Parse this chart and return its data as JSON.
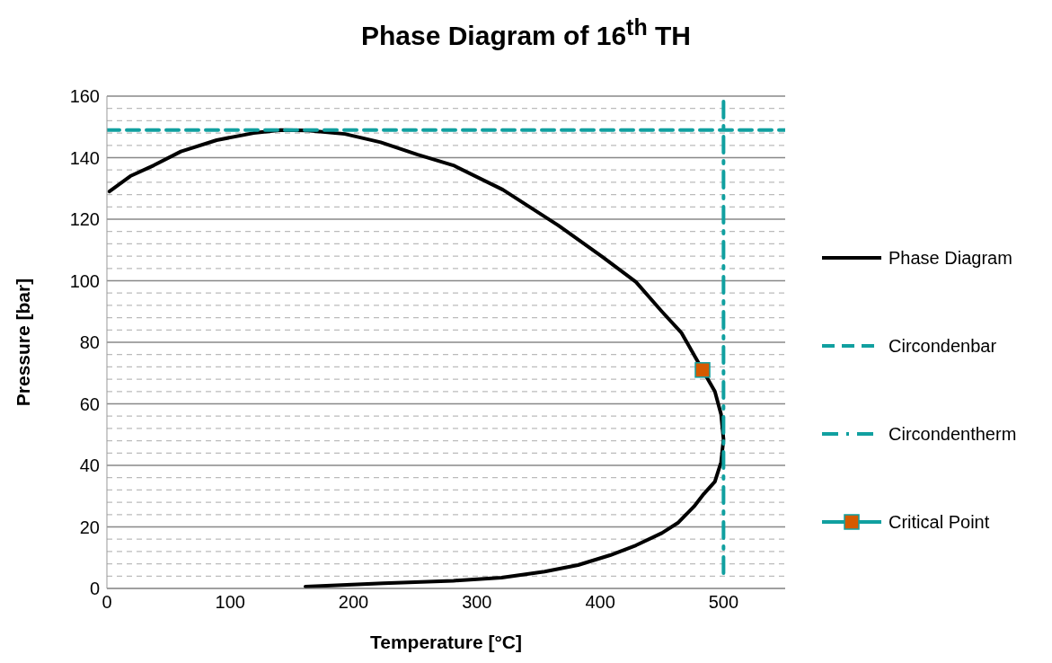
{
  "chart_data": {
    "type": "line",
    "title": "Phase Diagram of 16$^{th}$ TH",
    "xlabel": "Temperature [°C]",
    "ylabel": "Pressure [bar]",
    "xlim": [
      0,
      550
    ],
    "xticks": [
      0,
      100,
      200,
      300,
      400,
      500
    ],
    "ylim": [
      0,
      160
    ],
    "yticks": [
      0,
      {
        "value": 4,
        "label": null
      },
      {
        "value": 8,
        "label": null
      },
      {
        "value": 12,
        "label": null
      },
      {
        "value": 16,
        "label": null
      },
      20,
      {
        "value": 24,
        "label": null
      },
      {
        "value": 28,
        "label": null
      },
      {
        "value": 32,
        "label": null
      },
      {
        "value": 36,
        "label": null
      },
      40,
      {
        "value": 44,
        "label": null
      },
      {
        "value": 48,
        "label": null
      },
      {
        "value": 52,
        "label": null
      },
      {
        "value": 56,
        "label": null
      },
      60,
      {
        "value": 64,
        "label": null
      },
      {
        "value": 68,
        "label": null
      },
      {
        "value": 72,
        "label": null
      },
      {
        "value": 76,
        "label": null
      },
      80,
      {
        "value": 84,
        "label": null
      },
      {
        "value": 88,
        "label": null
      },
      {
        "value": 92,
        "label": null
      },
      {
        "value": 96,
        "label": null
      },
      100,
      {
        "value": 104,
        "label": null
      },
      {
        "value": 108,
        "label": null
      },
      {
        "value": 112,
        "label": null
      },
      {
        "value": 116,
        "label": null
      },
      120,
      {
        "value": 124,
        "label": null
      },
      {
        "value": 128,
        "label": null
      },
      {
        "value": 132,
        "label": null
      },
      {
        "value": 136,
        "label": null
      },
      140,
      {
        "value": 144,
        "label": null
      },
      {
        "value": 148,
        "label": null
      },
      {
        "value": 152,
        "label": null
      },
      {
        "value": 156,
        "label": null
      },
      160
    ],
    "grid": "y",
    "legend": "right",
    "series": [
      {
        "name": "Phase Diagram",
        "color": "#000000",
        "line_style": "solid",
        "marker": "none",
        "x": [
          161,
          224,
          281,
          320,
          355,
          382,
          408,
          429,
          450,
          463,
          476,
          484,
          493,
          498,
          500,
          498,
          493,
          481,
          466,
          450,
          429,
          402,
          366,
          321,
          281,
          252,
          222,
          193,
          163,
          141,
          119,
          89,
          60,
          38,
          19,
          2
        ],
        "values": [
          0.6,
          1.7,
          2.5,
          3.5,
          5.5,
          7.6,
          10.8,
          14,
          18,
          21.3,
          26.6,
          30.7,
          34.7,
          41,
          48.5,
          56.6,
          64,
          72.4,
          83,
          90,
          99.6,
          107.7,
          118,
          129.6,
          137.5,
          141,
          145,
          147.7,
          148.8,
          149,
          148,
          145.7,
          142,
          137.5,
          134,
          129
        ]
      },
      {
        "name": "Circondenbar",
        "color": "#11a0a0",
        "line_style": "dashed",
        "marker": "none",
        "x": [
          0,
          550
        ],
        "values": [
          149,
          149
        ]
      },
      {
        "name": "Circondentherm",
        "color": "#11a0a0",
        "line_style": "dotted",
        "marker": "none",
        "x": [
          500,
          500
        ],
        "values": [
          5,
          160
        ]
      },
      {
        "name": "Critical Point",
        "color": "#d55a00",
        "line_style": "solid",
        "marker": "square",
        "x": [
          483
        ],
        "values": [
          71
        ]
      }
    ]
  }
}
